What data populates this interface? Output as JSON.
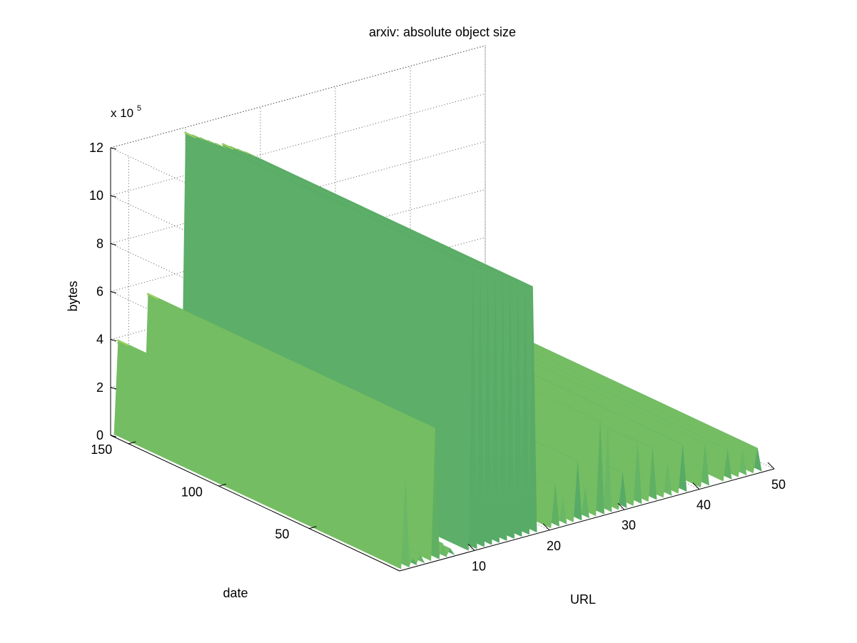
{
  "chart_data": {
    "type": "surface",
    "title": "arxiv: absolute object size",
    "xlabel": "URL",
    "ylabel": "date",
    "zlabel": "bytes",
    "z_exponent_base": "x 10",
    "z_exponent_power": "5",
    "x_range": [
      1,
      50
    ],
    "y_range": [
      1,
      160
    ],
    "z_range": [
      0,
      12
    ],
    "x_ticks": [
      10,
      20,
      30,
      40,
      50
    ],
    "y_ticks": [
      50,
      100,
      150
    ],
    "z_ticks": [
      0,
      2,
      4,
      6,
      8,
      10,
      12
    ],
    "grid": true,
    "colors": {
      "surface_dark": "#57ab66",
      "surface_mid": "#6ab866",
      "surface_light": "#9fd05a",
      "axis": "#000000",
      "grid": "#555555"
    },
    "note_units": "z values in units of 10^5 bytes",
    "ridges": [
      {
        "url": 1,
        "z": 3.9
      },
      {
        "url": 2,
        "z": 0.3
      },
      {
        "url": 3,
        "z": 0.4
      },
      {
        "url": 5,
        "z": 5.5
      },
      {
        "url": 6,
        "z": 0.6
      },
      {
        "url": 7,
        "z": 0.3
      },
      {
        "url": 10,
        "z": 11.8
      },
      {
        "url": 11,
        "z": 11.6
      },
      {
        "url": 12,
        "z": 11.4
      },
      {
        "url": 13,
        "z": 11.2
      },
      {
        "url": 14,
        "z": 11.0
      },
      {
        "url": 15,
        "z": 10.9
      },
      {
        "url": 16,
        "z": 10.7
      },
      {
        "url": 17,
        "z": 10.5
      },
      {
        "url": 18,
        "z": 10.3
      },
      {
        "url": 21,
        "z": 1.8
      },
      {
        "url": 22,
        "z": 1.2
      },
      {
        "url": 24,
        "z": 2.5
      },
      {
        "url": 25,
        "z": 1.3
      },
      {
        "url": 27,
        "z": 3.9
      },
      {
        "url": 28,
        "z": 3.6
      },
      {
        "url": 30,
        "z": 1.5
      },
      {
        "url": 32,
        "z": 2.6
      },
      {
        "url": 34,
        "z": 2.2
      },
      {
        "url": 36,
        "z": 1.4
      },
      {
        "url": 38,
        "z": 2.0
      },
      {
        "url": 41,
        "z": 1.8
      },
      {
        "url": 44,
        "z": 1.3
      },
      {
        "url": 46,
        "z": 1.1
      },
      {
        "url": 48,
        "z": 1.0
      }
    ]
  }
}
